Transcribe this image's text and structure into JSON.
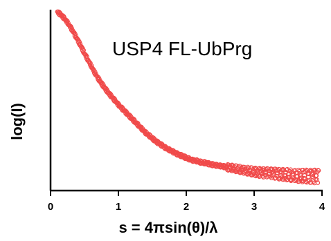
{
  "chart_data": {
    "type": "scatter",
    "annotation": "USP4 FL-UbPrg",
    "xlabel": "s = 4πsin(θ)/λ",
    "ylabel": "log(I)",
    "xlim": [
      0,
      4
    ],
    "x_ticks": [
      "0",
      "1",
      "2",
      "3",
      "4"
    ],
    "ylim": [
      0,
      1
    ],
    "y_ticks_shown": false,
    "grid": false,
    "legend": "none",
    "marker": "open-circle",
    "color": "#f04a4a",
    "series": [
      {
        "name": "",
        "x": [
          0.1,
          0.15,
          0.2,
          0.25,
          0.3,
          0.35,
          0.4,
          0.45,
          0.5,
          0.55,
          0.6,
          0.65,
          0.7,
          0.75,
          0.8,
          0.85,
          0.9,
          0.95,
          1.0,
          1.05,
          1.1,
          1.15,
          1.2,
          1.25,
          1.3,
          1.35,
          1.4,
          1.45,
          1.5,
          1.55,
          1.6,
          1.65,
          1.7,
          1.75,
          1.8,
          1.85,
          1.9,
          1.95,
          2.0,
          2.05,
          2.1,
          2.15,
          2.2,
          2.25,
          2.3,
          2.35,
          2.4,
          2.45,
          2.5,
          2.55,
          2.6,
          2.65,
          2.7,
          2.75,
          2.8,
          2.85,
          2.9,
          2.95,
          3.0,
          3.05,
          3.1,
          3.15,
          3.2,
          3.25,
          3.3,
          3.35,
          3.4,
          3.45,
          3.5,
          3.55,
          3.6,
          3.65,
          3.7,
          3.75,
          3.8,
          3.85,
          3.9,
          3.95
        ],
        "y": [
          1.0,
          0.983,
          0.963,
          0.937,
          0.907,
          0.873,
          0.837,
          0.8,
          0.76,
          0.723,
          0.687,
          0.65,
          0.617,
          0.587,
          0.56,
          0.533,
          0.51,
          0.487,
          0.463,
          0.443,
          0.423,
          0.403,
          0.383,
          0.363,
          0.343,
          0.323,
          0.303,
          0.287,
          0.27,
          0.253,
          0.24,
          0.227,
          0.213,
          0.203,
          0.193,
          0.183,
          0.173,
          0.167,
          0.157,
          0.15,
          0.143,
          0.14,
          0.133,
          0.13,
          0.127,
          0.12,
          0.117,
          0.113,
          0.11,
          0.107,
          0.103,
          0.1,
          0.097,
          0.093,
          0.09,
          0.087,
          0.083,
          0.08,
          0.077,
          0.073,
          0.073,
          0.07,
          0.07,
          0.067,
          0.067,
          0.063,
          0.063,
          0.06,
          0.06,
          0.057,
          0.057,
          0.053,
          0.053,
          0.053,
          0.05,
          0.05,
          0.05,
          0.047
        ]
      }
    ]
  }
}
